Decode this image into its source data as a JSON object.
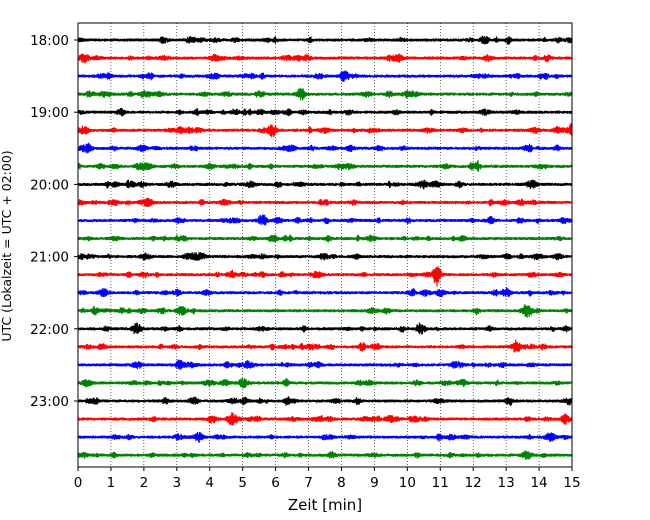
{
  "chart_data": {
    "type": "line",
    "xlabel": "Zeit  [min]",
    "ylabel": "UTC (Lokalzeit = UTC + 02:00)",
    "xlim": [
      0,
      15
    ],
    "x_ticks": [
      0,
      1,
      2,
      3,
      4,
      5,
      6,
      7,
      8,
      9,
      10,
      11,
      12,
      13,
      14,
      15
    ],
    "x_grid": "dotted vertical at each minute",
    "y_tick_labels": [
      "18:00",
      "19:00",
      "20:00",
      "21:00",
      "22:00",
      "23:00"
    ],
    "trace_start_hour": 18,
    "trace_interval_minutes": 15,
    "trace_count": 24,
    "color_cycle": [
      "#000000",
      "#ff0000",
      "#0000ff",
      "#008000"
    ],
    "legend": "none",
    "notable_events": [
      {
        "trace_start": "19:15",
        "minute": 5.9,
        "strength": 2.2
      },
      {
        "trace_start": "19:15",
        "minute": 15.0,
        "strength": 2.0
      },
      {
        "trace_start": "21:15",
        "minute": 10.9,
        "strength": 3.0
      },
      {
        "trace_start": "22:15",
        "minute": 13.3,
        "strength": 1.8
      },
      {
        "trace_start": "23:15",
        "minute": 14.8,
        "strength": 1.6
      },
      {
        "trace_start": "18:30",
        "minute": 8.1,
        "strength": 2.0
      },
      {
        "trace_start": "20:30",
        "minute": 5.6,
        "strength": 2.0
      },
      {
        "trace_start": "21:30",
        "minute": 13.0,
        "strength": 1.5
      }
    ]
  }
}
